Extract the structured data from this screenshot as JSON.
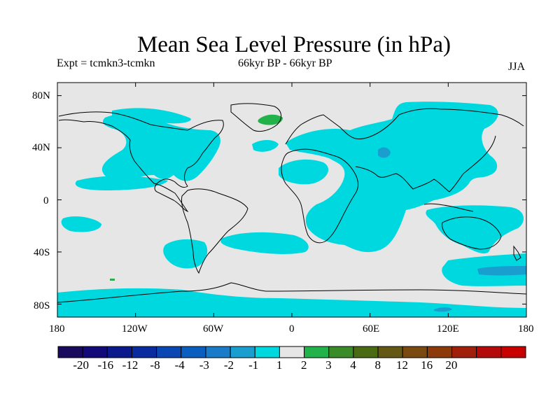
{
  "title": "Mean Sea Level Pressure (in hPa)",
  "experiment": "Expt = tcmkn3-tcmkn",
  "period": "66kyr BP - 66kyr BP",
  "season": "JJA",
  "colors": {
    "ocean_neutral": "#e6e6e6",
    "negative_light": "#00d8e0",
    "negative_medium": "#1a9ed0",
    "positive_light": "#22b24a",
    "coastline": "#000000"
  },
  "chart_data": {
    "type": "heatmap",
    "variable": "Mean Sea Level Pressure anomaly",
    "units": "hPa",
    "projection": "cylindrical equidistant",
    "lon_range": [
      -180,
      180
    ],
    "lat_range": [
      -90,
      90
    ],
    "x_ticks": [
      "180",
      "120W",
      "60W",
      "0",
      "60E",
      "120E",
      "180"
    ],
    "y_ticks": [
      "80N",
      "40N",
      "0",
      "40S",
      "80S"
    ],
    "colorbar": {
      "labels": [
        "-20",
        "-16",
        "-12",
        "-8",
        "-4",
        "-3",
        "-2",
        "-1",
        "1",
        "2",
        "3",
        "4",
        "8",
        "12",
        "16",
        "20"
      ],
      "colors": [
        "#1a0a5e",
        "#120a78",
        "#0a1a8c",
        "#0a2aa0",
        "#0a46b4",
        "#0a5ec0",
        "#1a7cc8",
        "#1a9ed0",
        "#00d8e0",
        "#e6e6e6",
        "#22b24a",
        "#3a8c28",
        "#4a6a14",
        "#645814",
        "#7a4a10",
        "#8c3a0a",
        "#a0200a",
        "#b40a0a",
        "#c80000"
      ]
    },
    "regions": [
      {
        "name": "North Pacific / North America",
        "class": "-2 to -1"
      },
      {
        "name": "Western North Atlantic",
        "class": "-2 to -1"
      },
      {
        "name": "Siberia / Asia / Indian Ocean",
        "class": "-2 to -1"
      },
      {
        "name": "Central Asia core",
        "class": "-3 to -2"
      },
      {
        "name": "Southwest Pacific core",
        "class": "-3 to -2"
      },
      {
        "name": "Greenland",
        "class": "1 to 2"
      },
      {
        "name": "Antarctic coast",
        "class": "-2 to -1"
      }
    ]
  }
}
